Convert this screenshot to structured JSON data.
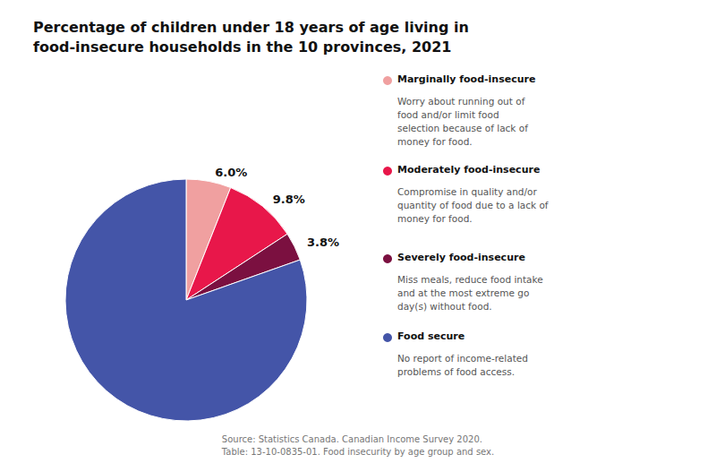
{
  "chart_data": {
    "type": "pie",
    "title": "Percentage of children under 18 years of age living in\nfood-insecure households in the 10 provinces, 2021",
    "categories": [
      "Marginally food-insecure",
      "Moderately food-insecure",
      "Severely food-insecure",
      "Food secure"
    ],
    "values": [
      6.0,
      9.8,
      3.8,
      80.4
    ],
    "value_labels": [
      "6.0%",
      "9.8%",
      "3.8%",
      null
    ],
    "colors": [
      "#f0a0a0",
      "#e8174a",
      "#7b1040",
      "#4455a8"
    ],
    "descriptions": [
      "Worry about running out of\nfood and/or limit food\nselection because of lack of\nmoney for food.",
      "Compromise in quality and/or\nquantity of food due to a lack of\nmoney for food.",
      "Miss meals, reduce food intake\nand at the most extreme go\nday(s) without food.",
      "No report of income-related\nproblems of food access."
    ],
    "source": "Source: Statistics Canada. Canadian Income Survey 2020.\nTable: 13-10-0835-01. Food insecurity by age group and sex.",
    "background_color": "#ffffff"
  }
}
